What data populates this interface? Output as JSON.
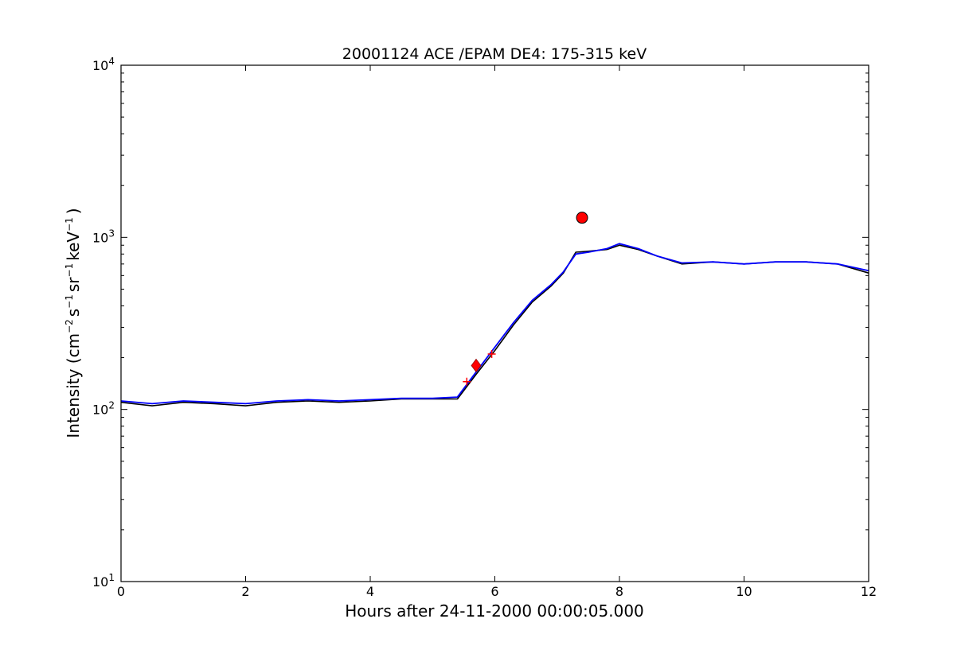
{
  "chart_data": {
    "type": "line",
    "title": "20001124 ACE /EPAM DE4: 175-315 keV",
    "xlabel": "Hours after 24-11-2000 00:00:05.000",
    "ylabel": "Intensity (cm⁻² s⁻¹ sr⁻¹ keV⁻¹)",
    "ylabel_parts": {
      "a": "Intensity (cm",
      "e1": "−2",
      "b": "s",
      "e2": "−1",
      "c": "sr",
      "e3": "−1",
      "d": "keV",
      "e4": "−1",
      "f": ")"
    },
    "xlim": [
      0,
      12
    ],
    "ylim": [
      10,
      10000
    ],
    "yscale": "log",
    "grid": false,
    "x_ticks": [
      "0",
      "2",
      "4",
      "6",
      "8",
      "10",
      "12"
    ],
    "y_ticks": [
      {
        "base": "10",
        "exp": "1"
      },
      {
        "base": "10",
        "exp": "2"
      },
      {
        "base": "10",
        "exp": "3"
      },
      {
        "base": "10",
        "exp": "4"
      }
    ],
    "series": [
      {
        "color": "#000000",
        "x": [
          0.0,
          0.5,
          1.0,
          1.5,
          2.0,
          2.5,
          3.0,
          3.5,
          4.0,
          4.5,
          5.0,
          5.4,
          5.7,
          6.0,
          6.3,
          6.6,
          6.9,
          7.1,
          7.3,
          7.5,
          7.8,
          8.0,
          8.3,
          8.6,
          9.0,
          9.5,
          10.0,
          10.5,
          11.0,
          11.5,
          12.0
        ],
        "values": [
          110,
          105,
          110,
          108,
          105,
          110,
          112,
          110,
          112,
          115,
          115,
          115,
          160,
          220,
          310,
          420,
          520,
          620,
          820,
          830,
          850,
          900,
          850,
          780,
          700,
          720,
          700,
          720,
          720,
          700,
          620
        ]
      },
      {
        "color": "#0000ff",
        "x": [
          0.0,
          0.5,
          1.0,
          1.5,
          2.0,
          2.5,
          3.0,
          3.5,
          4.0,
          4.5,
          5.0,
          5.4,
          5.7,
          6.0,
          6.3,
          6.6,
          6.9,
          7.1,
          7.3,
          7.5,
          7.8,
          8.0,
          8.3,
          8.6,
          9.0,
          9.5,
          10.0,
          10.5,
          11.0,
          11.5,
          12.0
        ],
        "values": [
          112,
          108,
          112,
          110,
          108,
          112,
          114,
          112,
          114,
          116,
          116,
          118,
          165,
          230,
          320,
          430,
          530,
          630,
          800,
          820,
          860,
          920,
          860,
          780,
          710,
          720,
          700,
          720,
          720,
          700,
          640
        ]
      }
    ],
    "markers": [
      {
        "shape": "diamond",
        "x": 5.7,
        "y": 180,
        "color": "#ff0000"
      },
      {
        "shape": "circle",
        "x": 7.4,
        "y": 1300,
        "color": "#ff0000"
      },
      {
        "shape": "plus",
        "x": 5.55,
        "y": 145,
        "color": "#ff0000"
      },
      {
        "shape": "plus",
        "x": 5.95,
        "y": 210,
        "color": "#ff0000"
      }
    ]
  }
}
